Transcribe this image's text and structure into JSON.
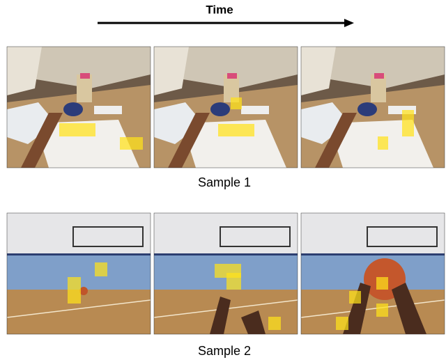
{
  "header": {
    "title": "Time"
  },
  "samples": [
    {
      "label": "Sample 1"
    },
    {
      "label": "Sample 2"
    }
  ]
}
